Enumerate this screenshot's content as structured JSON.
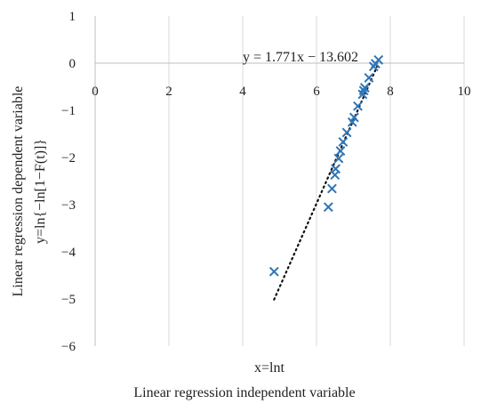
{
  "chart_data": {
    "type": "scatter",
    "xlabel_line1": "x=lnt",
    "xlabel_line2": "Linear regression independent variable",
    "ylabel_line1": "Linear regression dependent variable",
    "ylabel_line2": "y=ln{−ln[1−F(t)]}",
    "xlim": [
      0,
      10
    ],
    "ylim": [
      -6,
      1
    ],
    "x_ticks": [
      0,
      2,
      4,
      6,
      8,
      10
    ],
    "x_tick_labels": [
      "0",
      "2",
      "4",
      "6",
      "8",
      "10"
    ],
    "y_ticks": [
      1,
      0,
      -1,
      -2,
      -3,
      -4,
      -5,
      -6
    ],
    "y_tick_labels": [
      "1",
      "0",
      "−1",
      "−2",
      "−3",
      "−4",
      "−5",
      "−6"
    ],
    "grid": "vertical",
    "marker_color": "#2E75B6",
    "series": [
      {
        "marker": "x",
        "points": [
          [
            4.85,
            -4.42
          ],
          [
            6.32,
            -3.05
          ],
          [
            6.42,
            -2.66
          ],
          [
            6.5,
            -2.37
          ],
          [
            6.52,
            -2.24
          ],
          [
            6.6,
            -2.02
          ],
          [
            6.65,
            -1.86
          ],
          [
            6.72,
            -1.67
          ],
          [
            6.82,
            -1.47
          ],
          [
            6.97,
            -1.25
          ],
          [
            7.02,
            -1.15
          ],
          [
            7.12,
            -0.91
          ],
          [
            7.25,
            -0.66
          ],
          [
            7.28,
            -0.58
          ],
          [
            7.31,
            -0.52
          ],
          [
            7.42,
            -0.31
          ],
          [
            7.55,
            -0.07
          ],
          [
            7.6,
            -0.01
          ],
          [
            7.68,
            0.07
          ]
        ]
      }
    ],
    "trendline": {
      "slope": 1.771,
      "intercept": -13.602,
      "x_range": [
        4.85,
        7.68
      ],
      "equation_label": "y = 1.771x − 13.602"
    }
  }
}
